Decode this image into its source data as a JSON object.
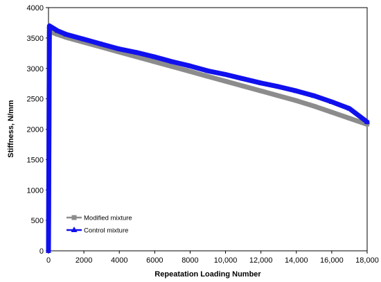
{
  "chart_data": {
    "type": "line",
    "xlabel": "Repeatation Loading Number",
    "ylabel": "Stiffness, N/mm",
    "xlim": [
      0,
      18000
    ],
    "ylim": [
      0,
      4000
    ],
    "x_ticks": [
      0,
      2000,
      4000,
      6000,
      8000,
      10000,
      12000,
      14000,
      16000,
      18000
    ],
    "x_tick_labels": [
      "0",
      "2000",
      "4000",
      "6000",
      "8000",
      "10,000",
      "12,000",
      "14,000",
      "16,000",
      "18,000"
    ],
    "y_ticks": [
      0,
      500,
      1000,
      1500,
      2000,
      2500,
      3000,
      3500,
      4000
    ],
    "y_tick_labels": [
      "0",
      "500",
      "1000",
      "1500",
      "2000",
      "2500",
      "3000",
      "3500",
      "4000"
    ],
    "grid": false,
    "legend_position": "bottom-left",
    "series": [
      {
        "name": "Modified mixture",
        "color": "#8c8c8c",
        "marker": "square",
        "x": [
          0,
          50,
          500,
          1000,
          2000,
          3000,
          4000,
          5000,
          6000,
          7000,
          8000,
          9000,
          10000,
          11000,
          12000,
          13000,
          14000,
          15000,
          16000,
          17000,
          18000
        ],
        "y": [
          0,
          3610,
          3560,
          3510,
          3430,
          3350,
          3270,
          3190,
          3110,
          3030,
          2950,
          2870,
          2790,
          2710,
          2630,
          2550,
          2470,
          2380,
          2280,
          2180,
          2080
        ]
      },
      {
        "name": "Control mixture",
        "color": "#1010ee",
        "marker": "triangle",
        "x": [
          0,
          50,
          500,
          1000,
          2000,
          3000,
          4000,
          5000,
          6000,
          7000,
          8000,
          9000,
          10000,
          11000,
          12000,
          13000,
          14000,
          15000,
          16000,
          17000,
          18000
        ],
        "y": [
          0,
          3700,
          3620,
          3560,
          3480,
          3400,
          3320,
          3260,
          3190,
          3110,
          3040,
          2960,
          2900,
          2830,
          2760,
          2700,
          2630,
          2550,
          2450,
          2340,
          2120
        ]
      }
    ]
  }
}
